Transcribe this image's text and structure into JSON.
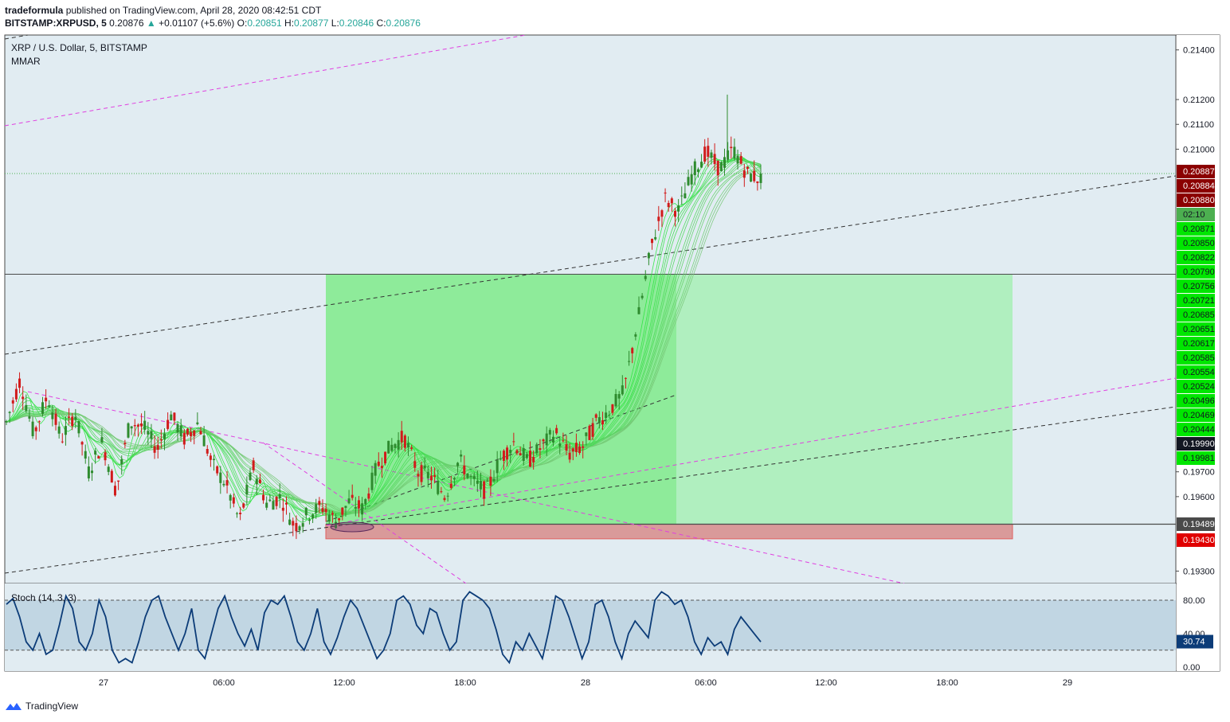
{
  "header": {
    "author": "tradeformula",
    "published": " published on TradingView.com, April 28, 2020 08:42:51 CDT",
    "symbol": "BITSTAMP:XRPUSD, 5",
    "price": "0.20876",
    "change": "+0.01107 (+5.6%)",
    "o_label": "O:",
    "o": "0.20851",
    "h_label": "H:",
    "h": "0.20877",
    "l_label": "L:",
    "l": "0.20846",
    "c_label": "C:",
    "c": "0.20876"
  },
  "footer": {
    "brand": "TradingView"
  },
  "chart_data": [
    {
      "type": "candlestick",
      "title": "XRP / U.S. Dollar, 5, BITSTAMP",
      "indicator": "MMAR",
      "y_axis_ticks": [
        0.214,
        0.212,
        0.211,
        0.21,
        0.197,
        0.196,
        0.193
      ],
      "ylim": [
        0.1925,
        0.2146
      ],
      "x_ticks": [
        "27",
        "06:00",
        "12:00",
        "18:00",
        "28",
        "06:00",
        "12:00",
        "18:00",
        "29"
      ],
      "price_labels": [
        {
          "value": "0.20887",
          "color": "#8b0000"
        },
        {
          "value": "0.20884",
          "color": "#8b0000"
        },
        {
          "value": "0.20880",
          "color": "#8b0000"
        },
        {
          "value": "02:10",
          "color": "#4caf50"
        },
        {
          "value": "0.20871",
          "color": "#00e600"
        },
        {
          "value": "0.20850",
          "color": "#00e600"
        },
        {
          "value": "0.20822",
          "color": "#00e600"
        },
        {
          "value": "0.20790",
          "color": "#00e600"
        },
        {
          "value": "0.20756",
          "color": "#00e600"
        },
        {
          "value": "0.20721",
          "color": "#00e600"
        },
        {
          "value": "0.20685",
          "color": "#00e600"
        },
        {
          "value": "0.20651",
          "color": "#00e600"
        },
        {
          "value": "0.20617",
          "color": "#00e600"
        },
        {
          "value": "0.20585",
          "color": "#00e600"
        },
        {
          "value": "0.20554",
          "color": "#00e600"
        },
        {
          "value": "0.20524",
          "color": "#00e600"
        },
        {
          "value": "0.20496",
          "color": "#00e600"
        },
        {
          "value": "0.20469",
          "color": "#00e600"
        },
        {
          "value": "0.20444",
          "color": "#00e600"
        },
        {
          "value": "0.19990",
          "color": "#131722"
        },
        {
          "value": "0.19981",
          "color": "#00e600"
        },
        {
          "value": "0.19489",
          "color": "#4a4a4a"
        },
        {
          "value": "0.19430",
          "color": "#e00000"
        }
      ],
      "ohlc_path": [
        0.199,
        0.2007,
        0.1985,
        0.2001,
        0.1983,
        0.1994,
        0.197,
        0.1982,
        0.1962,
        0.199,
        0.1988,
        0.1979,
        0.1993,
        0.1983,
        0.199,
        0.1973,
        0.1965,
        0.195,
        0.1972,
        0.1957,
        0.196,
        0.1948,
        0.1953,
        0.1956,
        0.195,
        0.1958,
        0.1955,
        0.1972,
        0.198,
        0.1984,
        0.197,
        0.1968,
        0.196,
        0.1975,
        0.1966,
        0.1962,
        0.1975,
        0.1982,
        0.1974,
        0.198,
        0.1986,
        0.1977,
        0.198,
        0.199,
        0.1995,
        0.2002,
        0.203,
        0.206,
        0.208,
        0.2075,
        0.209,
        0.2099,
        0.2092,
        0.21,
        0.209,
        0.2088
      ],
      "annotations": {
        "long_position": {
          "entry": 0.19489,
          "stop": 0.1943,
          "target": 0.20496
        }
      }
    },
    {
      "type": "line",
      "title": "Stoch (14, 3, 3)",
      "y_axis_ticks": [
        80.0,
        40.0,
        0.0
      ],
      "ylim": [
        -5,
        100
      ],
      "bands": [
        20,
        80
      ],
      "last_value": "30.74",
      "values": [
        75,
        82,
        60,
        30,
        20,
        40,
        15,
        20,
        50,
        85,
        70,
        30,
        20,
        40,
        80,
        60,
        20,
        5,
        10,
        5,
        30,
        60,
        80,
        85,
        60,
        40,
        20,
        40,
        70,
        20,
        10,
        40,
        70,
        85,
        60,
        40,
        25,
        45,
        20,
        65,
        80,
        75,
        85,
        60,
        30,
        20,
        40,
        70,
        30,
        15,
        35,
        60,
        80,
        70,
        50,
        30,
        10,
        20,
        40,
        80,
        85,
        75,
        50,
        40,
        70,
        65,
        40,
        20,
        30,
        80,
        90,
        85,
        80,
        70,
        45,
        15,
        5,
        30,
        20,
        40,
        25,
        10,
        45,
        85,
        80,
        60,
        35,
        10,
        30,
        75,
        80,
        60,
        30,
        10,
        40,
        55,
        45,
        35,
        80,
        90,
        85,
        75,
        80,
        60,
        30,
        15,
        35,
        25,
        30,
        15,
        45,
        60,
        50,
        40,
        30
      ]
    }
  ]
}
